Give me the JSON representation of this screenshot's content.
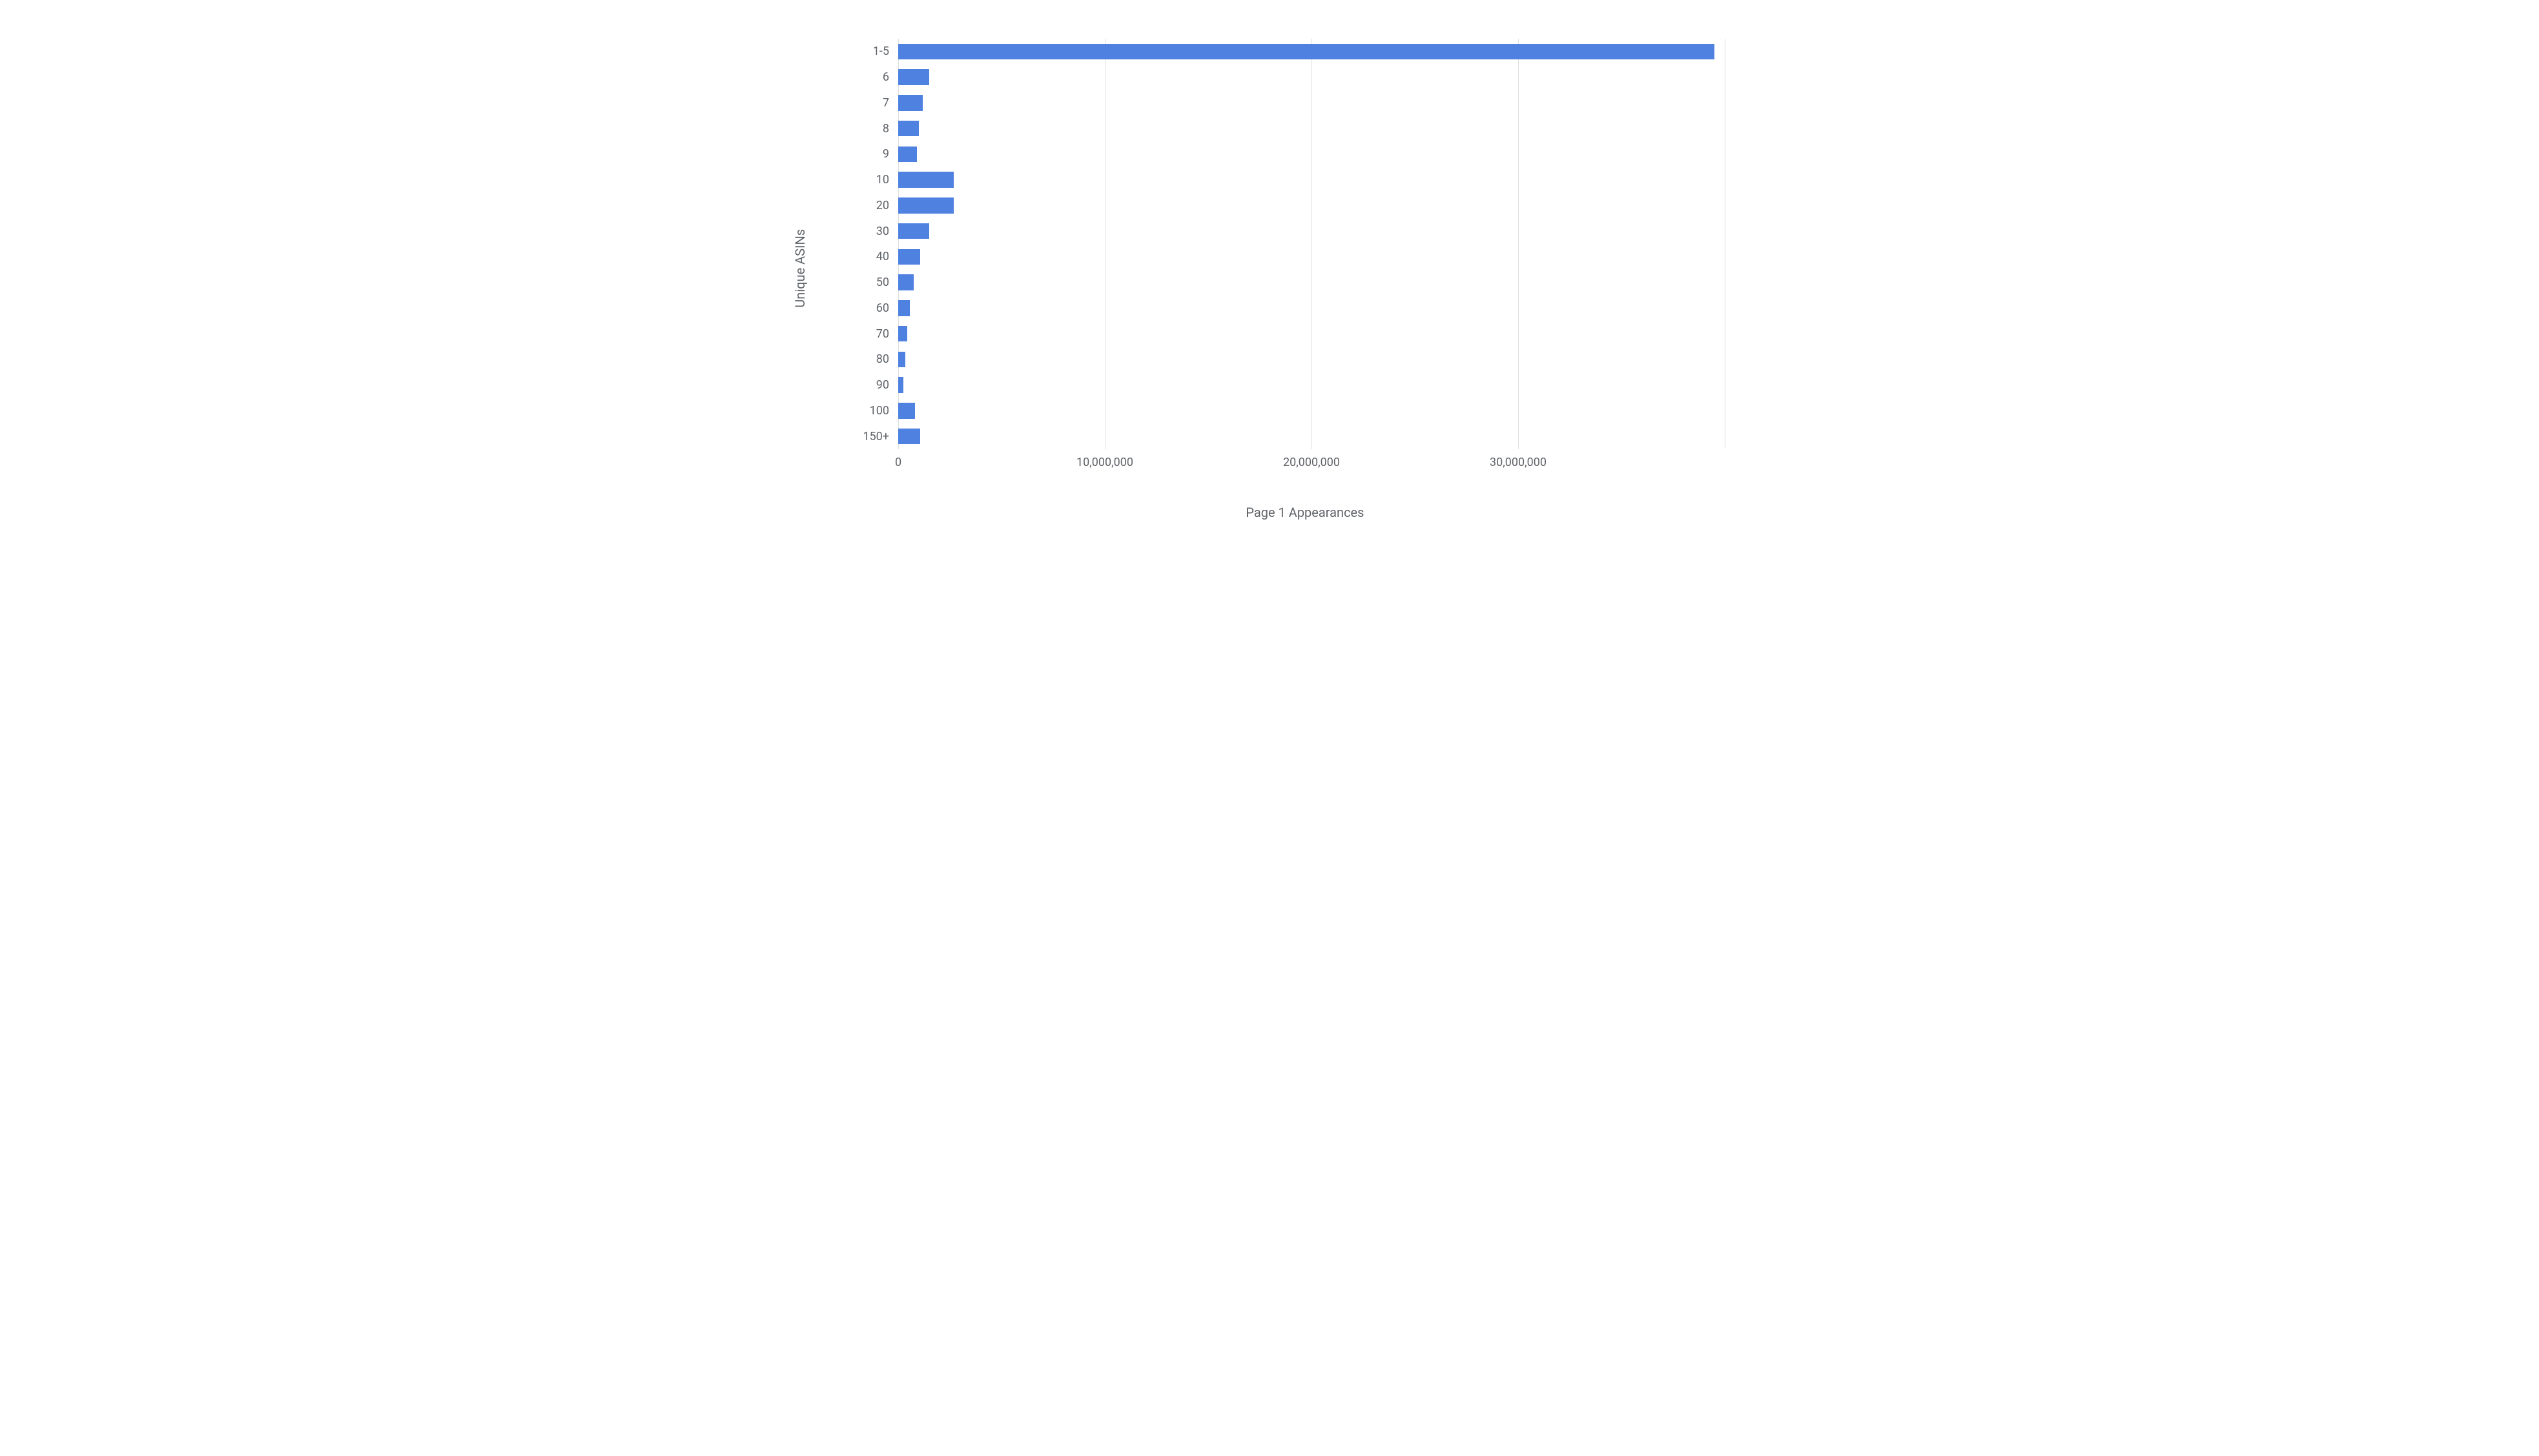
{
  "chart": {
    "type": "bar-horizontal",
    "y_axis_title": "Unique ASINs",
    "x_axis_title": "Page 1 Appearances",
    "background_color": "#ffffff",
    "grid_color": "#e0e0e0",
    "label_color": "#5f6368",
    "axis_title_fontsize": 20,
    "tick_fontsize": 18,
    "bar_color": "#4f81e1",
    "bar_height_ratio": 0.62,
    "x_min": 0,
    "x_max": 40000000,
    "x_ticks": [
      {
        "value": 0,
        "label": "0"
      },
      {
        "value": 10000000,
        "label": "10,000,000"
      },
      {
        "value": 20000000,
        "label": "20,000,000"
      },
      {
        "value": 30000000,
        "label": "30,000,000"
      }
    ],
    "categories": [
      "1-5",
      "6",
      "7",
      "8",
      "9",
      "10",
      "20",
      "30",
      "40",
      "50",
      "60",
      "70",
      "80",
      "90",
      "100",
      "150+"
    ],
    "values": [
      39500000,
      1500000,
      1200000,
      1000000,
      900000,
      2700000,
      2700000,
      1500000,
      1050000,
      750000,
      550000,
      450000,
      350000,
      250000,
      800000,
      1050000
    ]
  }
}
